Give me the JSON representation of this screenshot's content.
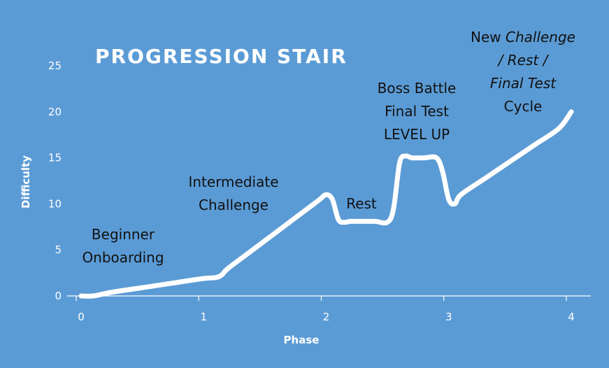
{
  "chart_data": {
    "type": "line",
    "title": "PROGRESSION STAIR",
    "xlabel": "Phase",
    "ylabel": "Difficulty",
    "xlim": [
      0,
      4
    ],
    "ylim": [
      0,
      25
    ],
    "x_ticks": [
      "0",
      "1",
      "2",
      "3",
      "4"
    ],
    "y_ticks": [
      "0",
      "5",
      "10",
      "15",
      "20",
      "25"
    ],
    "grid": false,
    "legend": "none",
    "line_color": "#ffffff",
    "background": "#5b9bd5",
    "series": [
      {
        "x": [
          0,
          0.1,
          0.25,
          0.5,
          0.75,
          1.0,
          1.1,
          1.15,
          1.2,
          1.4,
          1.6,
          1.8,
          1.9,
          1.95,
          2.0,
          2.05,
          2.1,
          2.15,
          2.2,
          2.3,
          2.4,
          2.5,
          2.55,
          2.6,
          2.65,
          2.7,
          2.8,
          2.9,
          2.95,
          3.0,
          3.05,
          3.1,
          3.3,
          3.5,
          3.7,
          3.9,
          4.0
        ],
        "y": [
          0,
          0,
          0.4,
          0.9,
          1.4,
          1.9,
          2.0,
          2.3,
          3.0,
          5.0,
          7.0,
          9.0,
          10.0,
          10.5,
          11.0,
          10.5,
          8.3,
          8.0,
          8.1,
          8.1,
          8.1,
          8.0,
          9.5,
          14.5,
          15.2,
          15.0,
          15.0,
          15.0,
          13.5,
          10.5,
          10.0,
          11.0,
          12.8,
          14.6,
          16.4,
          18.2,
          20.0
        ]
      }
    ],
    "annotations": [
      {
        "lines": [
          "Beginner",
          "Onboarding"
        ]
      },
      {
        "lines": [
          "Intermediate",
          "Challenge"
        ]
      },
      {
        "lines": [
          "Rest"
        ]
      },
      {
        "lines": [
          "Boss Battle",
          "Final Test",
          "LEVEL UP"
        ]
      },
      {
        "lines": [
          "New Challenge",
          "/ Rest /",
          "Final Test",
          "Cycle"
        ]
      }
    ]
  }
}
